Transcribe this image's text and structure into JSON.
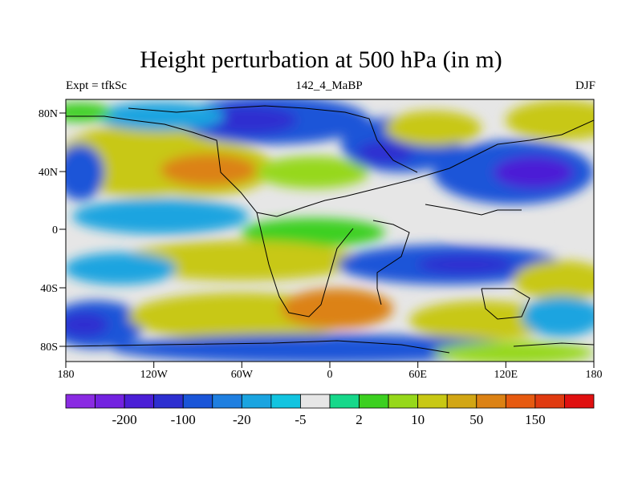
{
  "title": "Height perturbation at 500 hPa (in m)",
  "subtitle_left": "Expt = tfkSc",
  "subtitle_center": "142_4_MaBP",
  "subtitle_right": "DJF",
  "x_ticks": [
    "180",
    "120W",
    "60W",
    "0",
    "60E",
    "120E",
    "180"
  ],
  "y_ticks": [
    "80N",
    "40N",
    "0",
    "40S",
    "80S"
  ],
  "colorbar": {
    "colors": [
      "#8a2be2",
      "#7322e0",
      "#4b1fd6",
      "#2d2fd0",
      "#1a55d8",
      "#1f7fe0",
      "#1aa4e0",
      "#12c4e0",
      "#e6e6e6",
      "#16d88a",
      "#3cd020",
      "#96d81a",
      "#c8c814",
      "#d2a614",
      "#dc8214",
      "#e65a10",
      "#e03a10",
      "#e01010"
    ],
    "labels": [
      {
        "text": "-200",
        "after_box": 2
      },
      {
        "text": "-100",
        "after_box": 4
      },
      {
        "text": "-20",
        "after_box": 6
      },
      {
        "text": "-5",
        "after_box": 8
      },
      {
        "text": "2",
        "after_box": 10
      },
      {
        "text": "10",
        "after_box": 12
      },
      {
        "text": "50",
        "after_box": 14
      },
      {
        "text": "150",
        "after_box": 16
      }
    ]
  }
}
